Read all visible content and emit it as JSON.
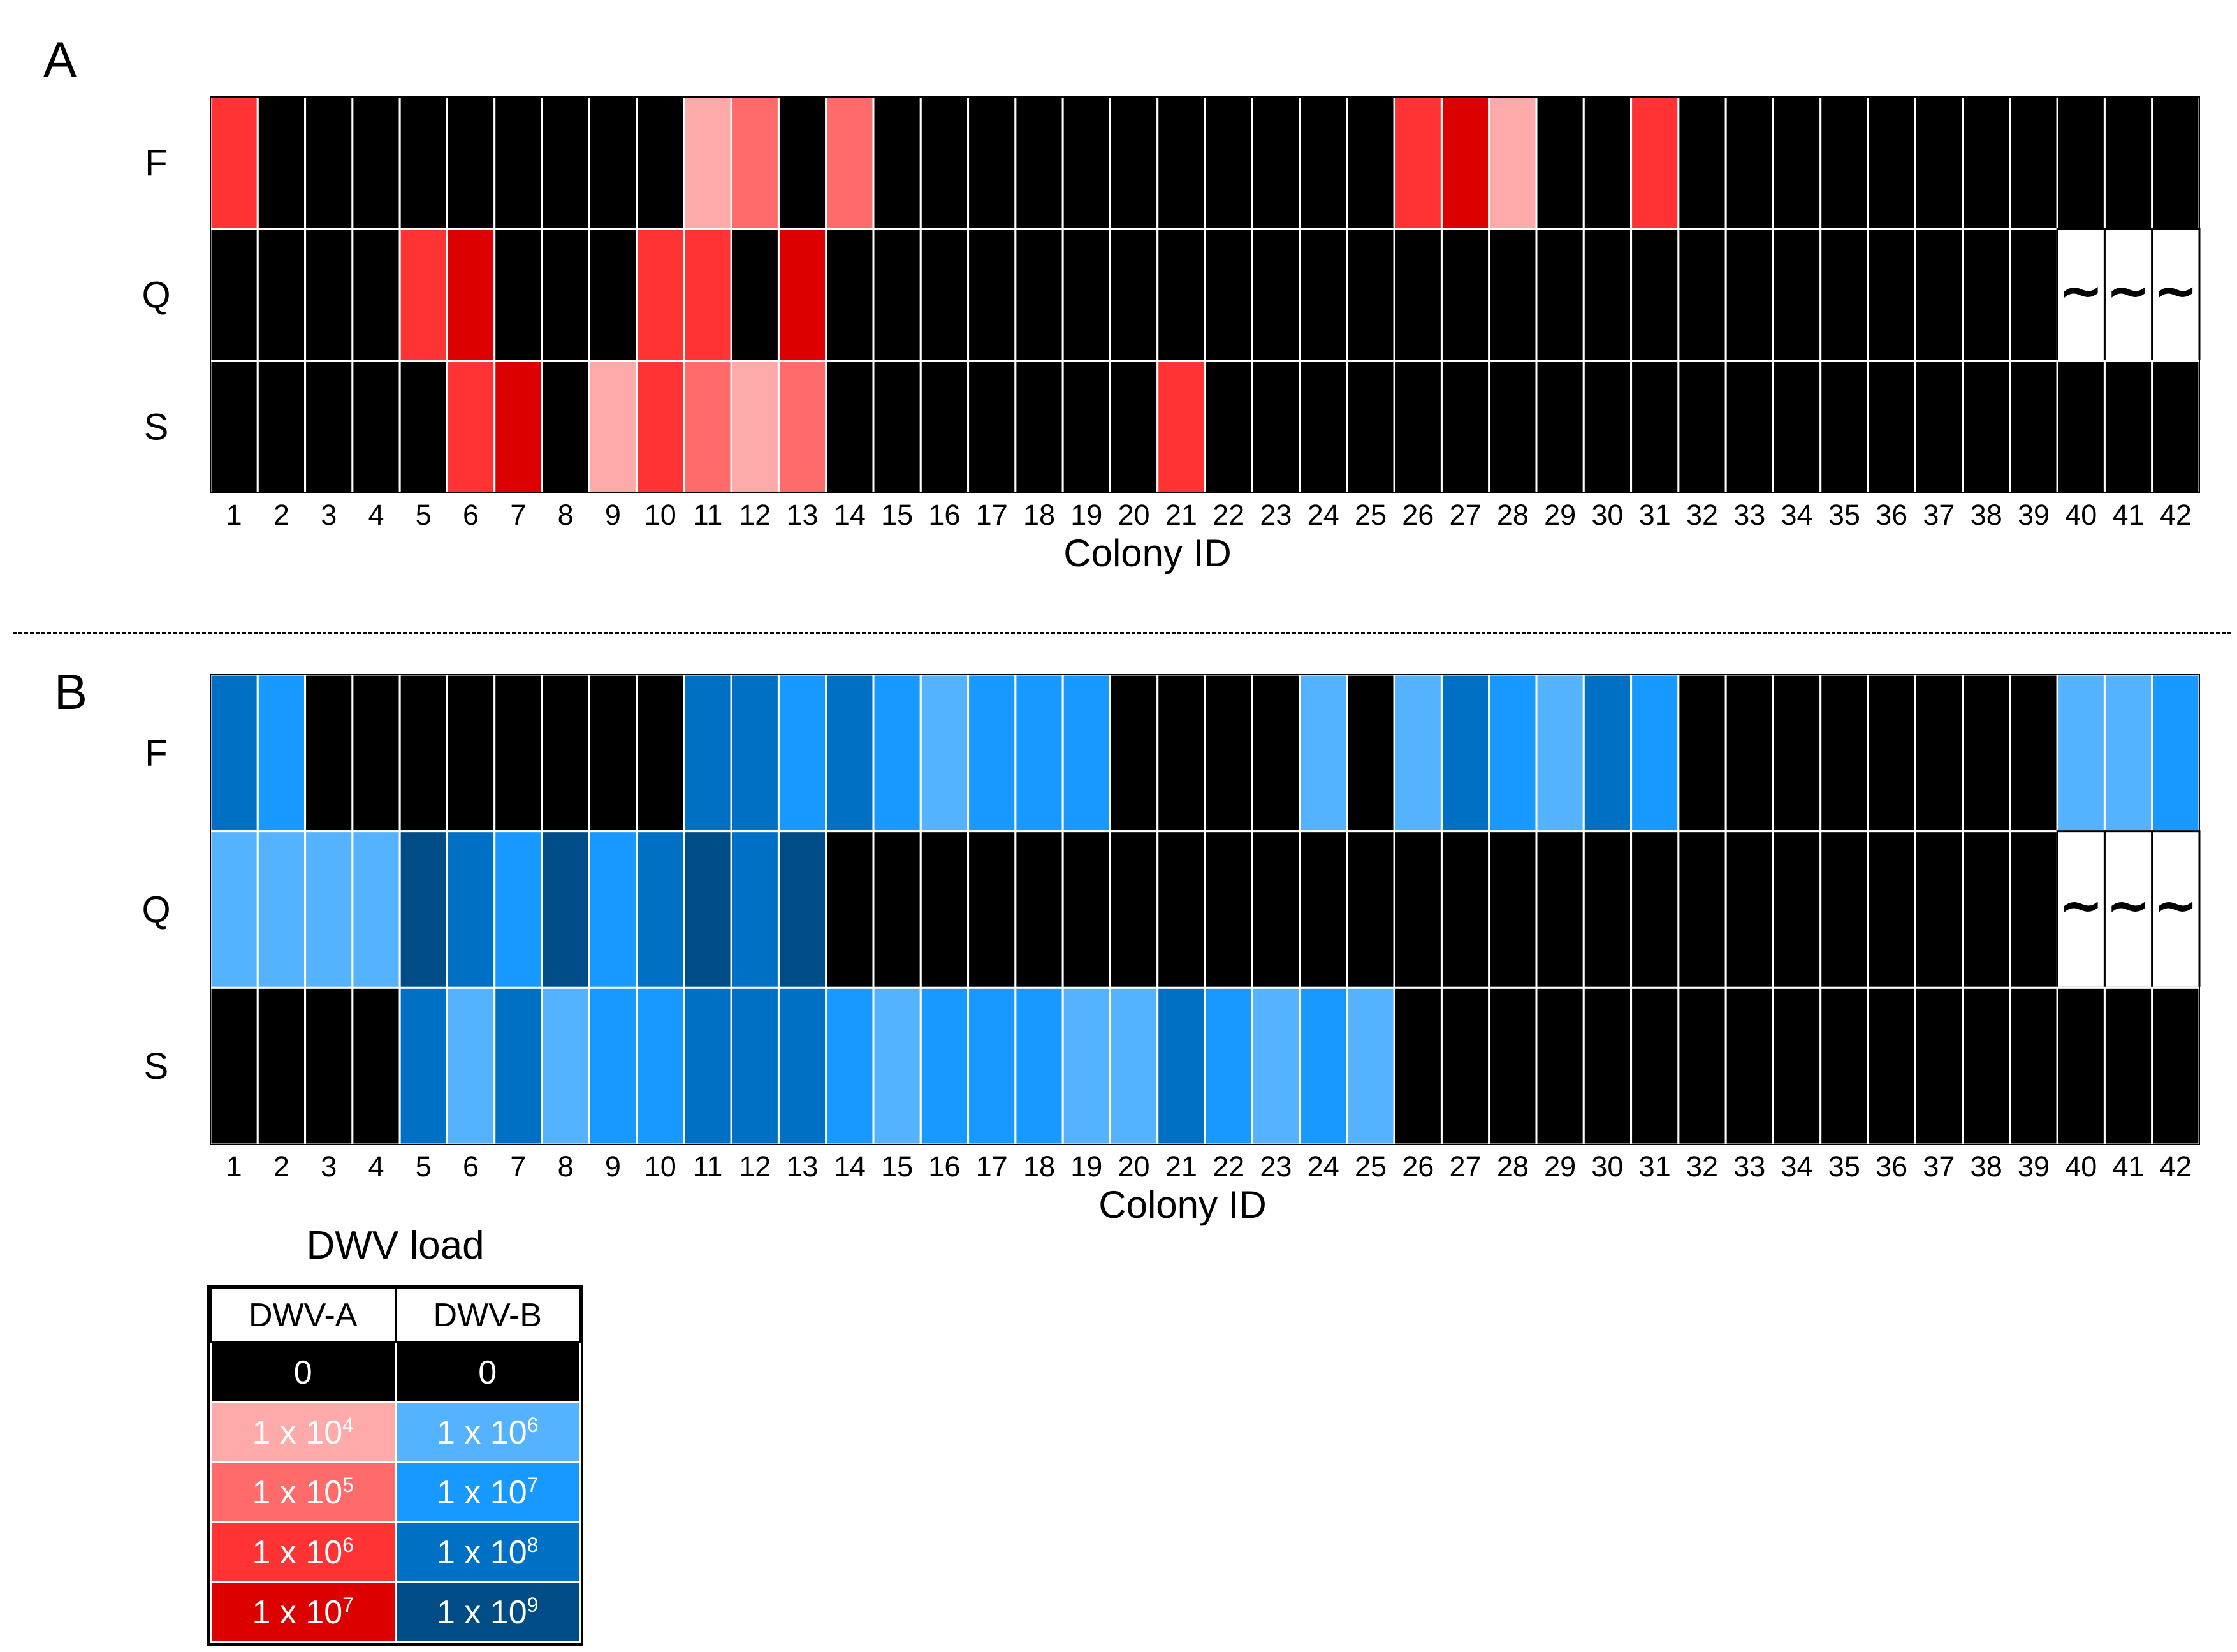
{
  "chart_data": [
    {
      "type": "heatmap",
      "panel_label": "A",
      "virus": "DWV-A",
      "xlabel": "Colony ID",
      "rows": [
        "F",
        "Q",
        "S"
      ],
      "columns": [
        "1",
        "2",
        "3",
        "4",
        "5",
        "6",
        "7",
        "8",
        "9",
        "10",
        "11",
        "12",
        "13",
        "14",
        "15",
        "16",
        "17",
        "18",
        "19",
        "20",
        "21",
        "22",
        "23",
        "24",
        "25",
        "26",
        "27",
        "28",
        "29",
        "30",
        "31",
        "32",
        "33",
        "34",
        "35",
        "36",
        "37",
        "38",
        "39",
        "40",
        "41",
        "42"
      ],
      "missing_symbol": "~",
      "values": [
        [
          6,
          0,
          0,
          0,
          0,
          0,
          0,
          0,
          0,
          0,
          4,
          5,
          0,
          5,
          0,
          0,
          0,
          0,
          0,
          0,
          0,
          0,
          0,
          0,
          0,
          6,
          7,
          4,
          0,
          0,
          6,
          0,
          0,
          0,
          0,
          0,
          0,
          0,
          0,
          0,
          0,
          0
        ],
        [
          0,
          0,
          0,
          0,
          6,
          7,
          0,
          0,
          0,
          6,
          6,
          0,
          7,
          0,
          0,
          0,
          0,
          0,
          0,
          0,
          0,
          0,
          0,
          0,
          0,
          0,
          0,
          0,
          0,
          0,
          0,
          0,
          0,
          0,
          0,
          0,
          0,
          0,
          0,
          null,
          null,
          null
        ],
        [
          0,
          0,
          0,
          0,
          0,
          6,
          7,
          0,
          4,
          6,
          5,
          4,
          5,
          0,
          0,
          0,
          0,
          0,
          0,
          0,
          6,
          0,
          0,
          0,
          0,
          0,
          0,
          0,
          0,
          0,
          0,
          0,
          0,
          0,
          0,
          0,
          0,
          0,
          0,
          0,
          0,
          0
        ]
      ]
    },
    {
      "type": "heatmap",
      "panel_label": "B",
      "virus": "DWV-B",
      "xlabel": "Colony ID",
      "rows": [
        "F",
        "Q",
        "S"
      ],
      "columns": [
        "1",
        "2",
        "3",
        "4",
        "5",
        "6",
        "7",
        "8",
        "9",
        "10",
        "11",
        "12",
        "13",
        "14",
        "15",
        "16",
        "17",
        "18",
        "19",
        "20",
        "21",
        "22",
        "23",
        "24",
        "25",
        "26",
        "27",
        "28",
        "29",
        "30",
        "31",
        "32",
        "33",
        "34",
        "35",
        "36",
        "37",
        "38",
        "39",
        "40",
        "41",
        "42"
      ],
      "missing_symbol": "~",
      "values": [
        [
          8,
          7,
          0,
          0,
          0,
          0,
          0,
          0,
          0,
          0,
          8,
          8,
          7,
          8,
          7,
          6,
          7,
          7,
          7,
          0,
          0,
          0,
          0,
          6,
          0,
          6,
          8,
          7,
          6,
          8,
          7,
          0,
          0,
          0,
          0,
          0,
          0,
          0,
          0,
          6,
          6,
          7
        ],
        [
          6,
          6,
          6,
          6,
          9,
          8,
          7,
          9,
          7,
          8,
          9,
          8,
          9,
          0,
          0,
          0,
          0,
          0,
          0,
          0,
          0,
          0,
          0,
          0,
          0,
          0,
          0,
          0,
          0,
          0,
          0,
          0,
          0,
          0,
          0,
          0,
          0,
          0,
          0,
          null,
          null,
          null
        ],
        [
          0,
          0,
          0,
          0,
          8,
          6,
          8,
          6,
          7,
          7,
          8,
          8,
          8,
          7,
          6,
          7,
          7,
          7,
          6,
          6,
          8,
          7,
          6,
          7,
          6,
          0,
          0,
          0,
          0,
          0,
          0,
          0,
          0,
          0,
          0,
          0,
          0,
          0,
          0,
          0,
          0,
          0
        ]
      ]
    }
  ],
  "legend": {
    "title": "DWV load",
    "headers": [
      "DWV-A",
      "DWV-B"
    ],
    "zero": "0",
    "a": [
      {
        "exp": 4,
        "base": "1 x 10",
        "sup": "4",
        "color": "#ffaaaa"
      },
      {
        "exp": 5,
        "base": "1 x 10",
        "sup": "5",
        "color": "#ff6b6b"
      },
      {
        "exp": 6,
        "base": "1 x 10",
        "sup": "6",
        "color": "#ff3333"
      },
      {
        "exp": 7,
        "base": "1 x 10",
        "sup": "7",
        "color": "#dd0000"
      }
    ],
    "b": [
      {
        "exp": 6,
        "base": "1 x 10",
        "sup": "6",
        "color": "#55b2ff"
      },
      {
        "exp": 7,
        "base": "1 x 10",
        "sup": "7",
        "color": "#1899ff"
      },
      {
        "exp": 8,
        "base": "1 x 10",
        "sup": "8",
        "color": "#0070c5"
      },
      {
        "exp": 9,
        "base": "1 x 10",
        "sup": "9",
        "color": "#004c86"
      }
    ],
    "zero_color": "#000000"
  }
}
